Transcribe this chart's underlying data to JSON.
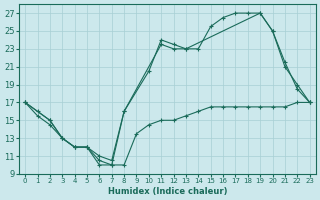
{
  "xlabel": "Humidex (Indice chaleur)",
  "background_color": "#cce8ec",
  "line_color": "#1a6b5a",
  "xlim": [
    -0.5,
    23.5
  ],
  "ylim": [
    9,
    28
  ],
  "yticks": [
    9,
    11,
    13,
    15,
    17,
    19,
    21,
    23,
    25,
    27
  ],
  "xticks": [
    0,
    1,
    2,
    3,
    4,
    5,
    6,
    7,
    8,
    9,
    10,
    11,
    12,
    13,
    14,
    15,
    16,
    17,
    18,
    19,
    20,
    21,
    22,
    23
  ],
  "lines": [
    {
      "x": [
        0,
        1,
        2,
        3,
        4,
        5,
        6,
        7,
        8,
        9,
        10,
        11,
        12,
        13,
        14,
        15,
        16,
        17,
        18,
        19,
        20,
        21,
        22,
        23
      ],
      "y": [
        17,
        15.5,
        14.5,
        13,
        12,
        12,
        10.5,
        10,
        10,
        13.5,
        14.5,
        15,
        15,
        15.5,
        16,
        16.5,
        16.5,
        16.5,
        16.5,
        16.5,
        16.5,
        16.5,
        17,
        17
      ]
    },
    {
      "x": [
        0,
        1,
        2,
        3,
        4,
        5,
        6,
        7,
        8,
        10,
        11,
        12,
        13,
        14,
        15,
        16,
        17,
        18,
        19,
        20,
        21,
        22,
        23
      ],
      "y": [
        17,
        16,
        15,
        13,
        12,
        12,
        10,
        10,
        16,
        20.5,
        24,
        23.5,
        23,
        23,
        25.5,
        26.5,
        27,
        27,
        27,
        25,
        21.5,
        18.5,
        17
      ]
    },
    {
      "x": [
        0,
        2,
        3,
        4,
        5,
        6,
        7,
        8,
        11,
        12,
        13,
        19,
        20,
        21,
        22,
        23
      ],
      "y": [
        17,
        15,
        13,
        12,
        12,
        11,
        10.5,
        16,
        23.5,
        23,
        23,
        27,
        25,
        21,
        19,
        17
      ]
    }
  ]
}
